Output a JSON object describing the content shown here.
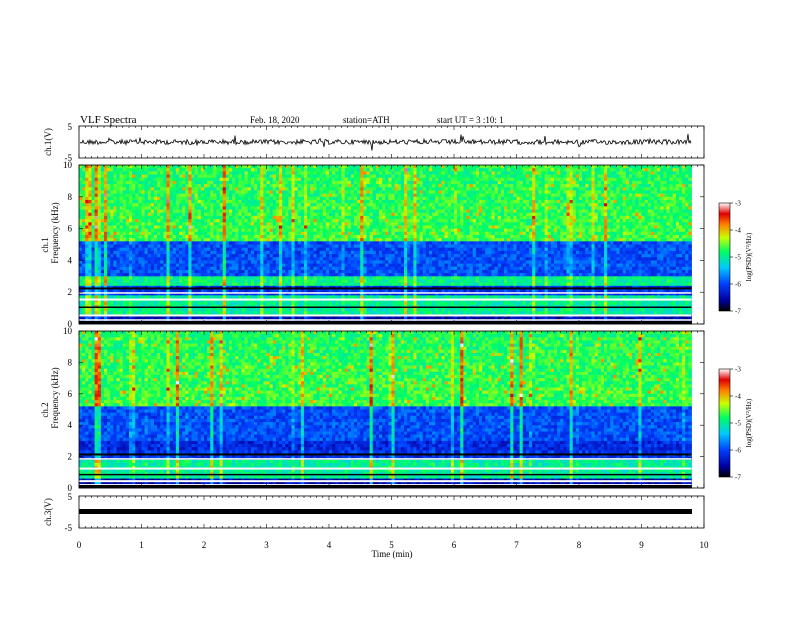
{
  "header": {
    "title": "VLF  Spectra",
    "date": "Feb. 18, 2020",
    "station": "station=ATH",
    "start": "start  UT  =    3  :10: 1"
  },
  "chart_data": [
    {
      "type": "line",
      "panel": "ch1-waveform",
      "ylabel": "ch.1(V)",
      "ylim": [
        -5,
        5
      ],
      "yticks": [
        "5",
        "-5"
      ],
      "xlim": [
        0,
        10
      ]
    },
    {
      "type": "heatmap",
      "panel": "ch1-spectrogram",
      "ylabel_line1": "ch.1",
      "ylabel_line2": "Frequency  (kHz)",
      "ylim": [
        0,
        10
      ],
      "yticks": [
        "0",
        "2",
        "4",
        "6",
        "8",
        "10"
      ],
      "xlim": [
        0,
        10
      ],
      "data_end_min": 9.8,
      "colorbar": {
        "label": "log(PSD)(V²/Hz)",
        "range": [
          -7,
          -3
        ],
        "ticks": [
          "-3",
          "-4",
          "-5",
          "-6",
          "-7"
        ]
      }
    },
    {
      "type": "heatmap",
      "panel": "ch2-spectrogram",
      "ylabel_line1": "ch.2",
      "ylabel_line2": "Frequency  (kHz)",
      "ylim": [
        0,
        10
      ],
      "yticks": [
        "0",
        "2",
        "4",
        "6",
        "8",
        "10"
      ],
      "xlim": [
        0,
        10
      ],
      "data_end_min": 9.8,
      "colorbar": {
        "label": "log(PSD)(V²/Hz)",
        "range": [
          -7,
          -3
        ],
        "ticks": [
          "-3",
          "-4",
          "-5",
          "-6",
          "-7"
        ]
      }
    },
    {
      "type": "line",
      "panel": "ch3-waveform",
      "ylabel": "ch.3(V)",
      "ylim": [
        -5,
        5
      ],
      "yticks": [
        "5",
        "-5"
      ],
      "xlim": [
        0,
        10
      ],
      "xlabel": "Time  (min)",
      "xticks": [
        "0",
        "1",
        "2",
        "3",
        "4",
        "5",
        "6",
        "7",
        "8",
        "9",
        "10"
      ]
    }
  ]
}
